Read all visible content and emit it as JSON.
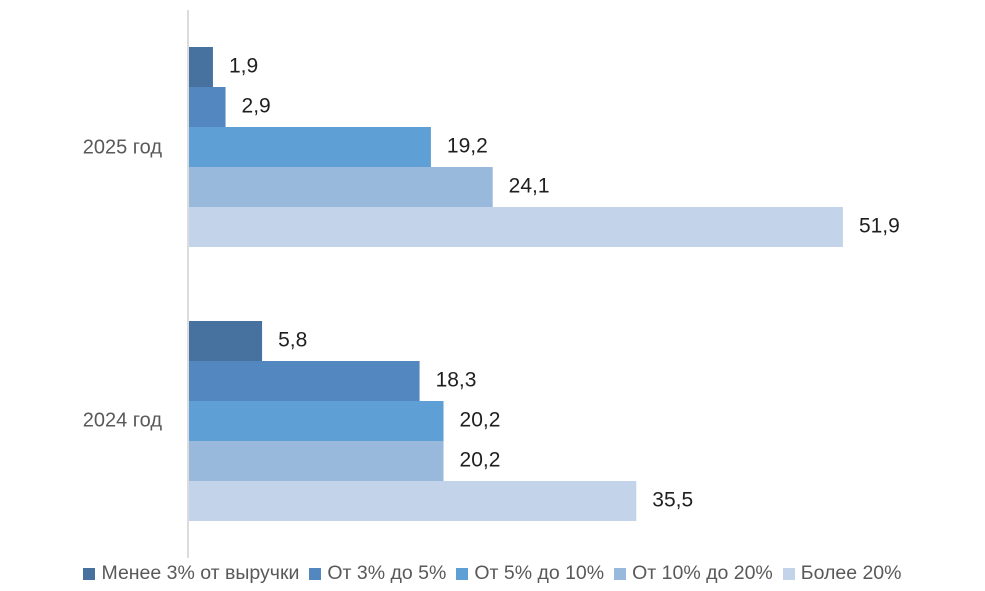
{
  "chart_data": {
    "type": "bar",
    "orientation": "horizontal",
    "categories": [
      "2025 год",
      "2024 год"
    ],
    "series": [
      {
        "name": "Менее 3% от выручки",
        "values": [
          1.9,
          5.8
        ],
        "labels": [
          "1,9",
          "5,8"
        ],
        "color": "#47719e"
      },
      {
        "name": "От 3% до 5%",
        "values": [
          2.9,
          18.3
        ],
        "labels": [
          "2,9",
          "18,3"
        ],
        "color": "#5387c0"
      },
      {
        "name": "От 5% до 10%",
        "values": [
          19.2,
          20.2
        ],
        "labels": [
          "19,2",
          "20,2"
        ],
        "color": "#5e9fd6"
      },
      {
        "name": "От 10% до 20%",
        "values": [
          24.1,
          20.2
        ],
        "labels": [
          "24,1",
          "20,2"
        ],
        "color": "#98b8dc"
      },
      {
        "name": "Более 20%",
        "values": [
          51.9,
          35.5
        ],
        "labels": [
          "51,9",
          "35,5"
        ],
        "color": "#c3d3e9"
      }
    ],
    "xlim": [
      0,
      60
    ],
    "grid": false,
    "legend_position": "bottom"
  }
}
